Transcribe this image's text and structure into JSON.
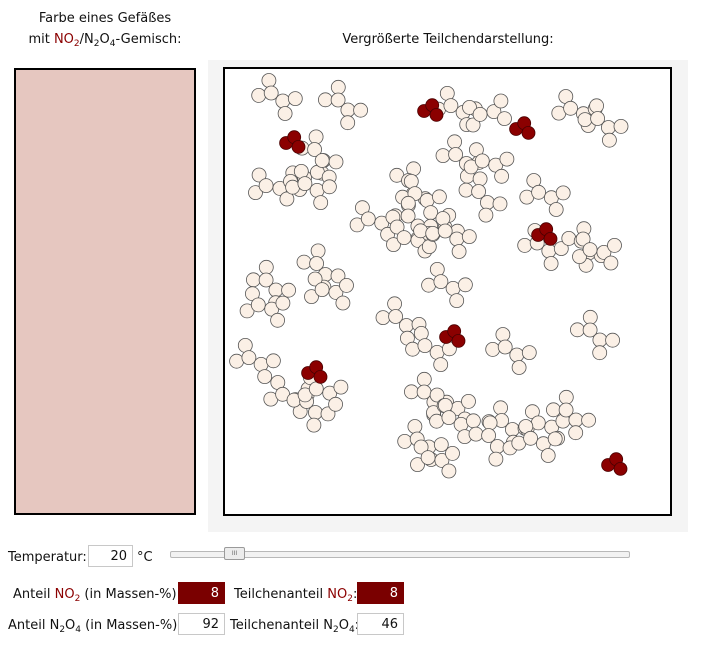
{
  "vessel_title": {
    "line1": "Farbe eines Gefäßes",
    "line2_prefix": "mit ",
    "no2_base": "NO",
    "no2_sub": "2",
    "sep": "/",
    "n2o4_a": "N",
    "n2o4_sub1": "2",
    "n2o4_b": "O",
    "n2o4_sub2": "4",
    "suffix": "-Gemisch:"
  },
  "particles_title": "Vergrößerte Teilchendarstellung:",
  "colors": {
    "vessel_fill": "#e6c7c0",
    "no2": "#8b0000",
    "n2o4": "#fbf0e6"
  },
  "temperature": {
    "label": "Temperatur:",
    "value": "20",
    "unit": "°C",
    "slider_handle_glyph": "III",
    "slider_fraction": 0.14
  },
  "no2_mass": {
    "prefix": "Anteil ",
    "formula": "NO",
    "sub": "2",
    "suffix": " (in Massen-%):",
    "value": "8"
  },
  "no2_particle": {
    "prefix": "Teilchenanteil ",
    "formula": "NO",
    "sub": "2",
    "suffix": ":",
    "value": "8"
  },
  "n2o4_mass": {
    "prefix": "Anteil N",
    "sub1": "2",
    "mid": "O",
    "sub2": "4",
    "suffix": " (in Massen-%):",
    "value": "92"
  },
  "n2o4_particle": {
    "prefix": "Teilchenanteil N",
    "sub1": "2",
    "mid": "O",
    "sub2": "4",
    "suffix": ":",
    "value": "46"
  }
}
